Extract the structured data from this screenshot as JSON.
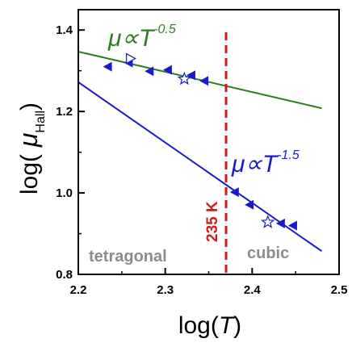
{
  "chart_data": {
    "type": "scatter",
    "xlabel": "log(T)",
    "ylabel": "log(μHall)",
    "xlim": [
      2.2,
      2.5
    ],
    "ylim": [
      0.8,
      1.45
    ],
    "x_ticks": [
      "2.2",
      "2.3",
      "2.4",
      "2.5"
    ],
    "y_ticks": [
      "0.8",
      "1.0",
      "1.2",
      "1.4"
    ],
    "series": [
      {
        "color": "#1a1acc",
        "marker": "left-triangle-filled",
        "points": [
          {
            "x": 2.234,
            "y": 1.31
          },
          {
            "x": 2.258,
            "y": 1.32
          },
          {
            "x": 2.282,
            "y": 1.299
          },
          {
            "x": 2.303,
            "y": 1.302
          },
          {
            "x": 2.33,
            "y": 1.289
          },
          {
            "x": 2.345,
            "y": 1.275
          },
          {
            "x": 2.38,
            "y": 1.002
          },
          {
            "x": 2.397,
            "y": 0.971
          },
          {
            "x": 2.433,
            "y": 0.925
          },
          {
            "x": 2.447,
            "y": 0.92
          }
        ]
      },
      {
        "color": "#1a1acc",
        "marker": "right-triangle-open",
        "points": [
          {
            "x": 2.26,
            "y": 1.33
          }
        ]
      },
      {
        "color": "#1a1acc",
        "marker": "star-open",
        "points": [
          {
            "x": 2.322,
            "y": 1.28
          },
          {
            "x": 2.418,
            "y": 0.928
          }
        ]
      }
    ],
    "fits": [
      {
        "label_base": "μ∝T",
        "exponent": "-0.5",
        "color": "#2e7d1e",
        "x": [
          2.2,
          2.48
        ],
        "y": [
          1.347,
          1.208
        ]
      },
      {
        "label_base": "μ∝T",
        "exponent": "-1.5",
        "color": "#1a1acc",
        "x": [
          2.2,
          2.48
        ],
        "y": [
          1.272,
          0.857
        ]
      }
    ],
    "reference_line": {
      "x": 2.37,
      "label": "235 K",
      "color": "#d11a1a",
      "style": "dashed"
    },
    "region_labels": [
      {
        "text": "tetragonal",
        "x": 2.22,
        "y": 0.835
      },
      {
        "text": "cubic",
        "x": 2.39,
        "y": 0.84
      }
    ],
    "grid": false
  }
}
